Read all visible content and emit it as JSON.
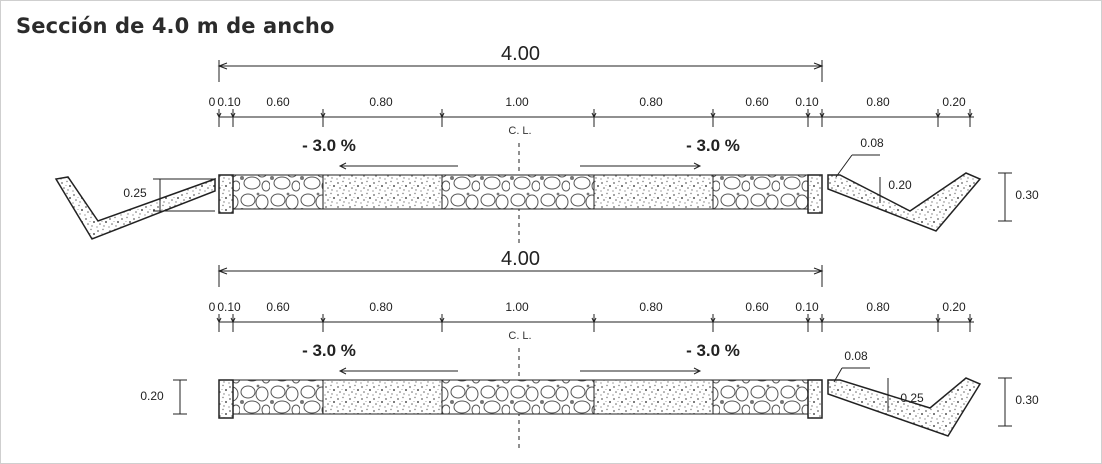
{
  "title": "Sección de 4.0 m de ancho",
  "sections": [
    {
      "total_width": "4.00",
      "dims": [
        "0.10",
        "0.60",
        "0.80",
        "1.00",
        "0.80",
        "0.60",
        "0.10",
        "0.80",
        "0.20"
      ],
      "first_dim": "0",
      "centerline": "C. L.",
      "slope_left": "- 3.0 %",
      "slope_right": "- 3.0 %",
      "ditch_left_depth": "0.25",
      "ditch_right_top": "0.08",
      "ditch_right_inner": "0.20",
      "ditch_right_depth": "0.30"
    },
    {
      "total_width": "4.00",
      "dims": [
        "0.10",
        "0.60",
        "0.80",
        "1.00",
        "0.80",
        "0.60",
        "0.10",
        "0.80",
        "0.20"
      ],
      "first_dim": "0",
      "centerline": "C. L.",
      "slope_left": "- 3.0 %",
      "slope_right": "- 3.0 %",
      "curb_left_height": "0.20",
      "ditch_right_top": "0.08",
      "ditch_right_inner": "0.25",
      "ditch_right_depth": "0.30"
    }
  ]
}
